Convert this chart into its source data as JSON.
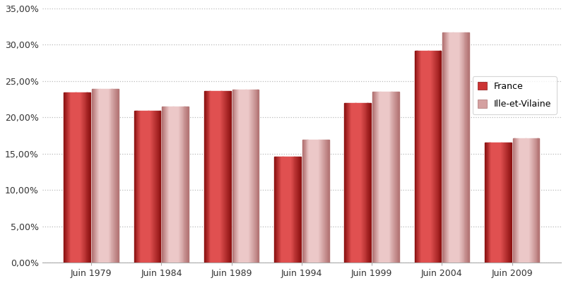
{
  "categories": [
    "Juin 1979",
    "Juin 1984",
    "Juin 1989",
    "Juin 1994",
    "Juin 1999",
    "Juin 2004",
    "Juin 2009"
  ],
  "france": [
    0.234,
    0.209,
    0.236,
    0.146,
    0.22,
    0.292,
    0.165
  ],
  "ille_et_vilaine": [
    0.239,
    0.215,
    0.238,
    0.169,
    0.235,
    0.317,
    0.171
  ],
  "france_base_color": "#C0392B",
  "france_light_color": "#E05050",
  "france_dark_color": "#8B1010",
  "ille_base_color": "#D4A0A0",
  "ille_light_color": "#ECC8C8",
  "ille_dark_color": "#B07070",
  "legend_france": "France",
  "legend_ille": "Ille-et-Vilaine",
  "ylim": [
    0.0,
    0.35
  ],
  "yticks": [
    0.0,
    0.05,
    0.1,
    0.15,
    0.2,
    0.25,
    0.3,
    0.35
  ],
  "ytick_labels": [
    "0,00%",
    "5,00%",
    "10,00%",
    "15,00%",
    "20,00%",
    "25,00%",
    "30,00%",
    "35,00%"
  ],
  "bar_width": 0.38,
  "bar_gap": 0.02,
  "background_color": "#FFFFFF",
  "grid_color": "#BBBBBB",
  "legend_box_color": "#CC3333",
  "legend_box_ille_color": "#D4A0A0"
}
